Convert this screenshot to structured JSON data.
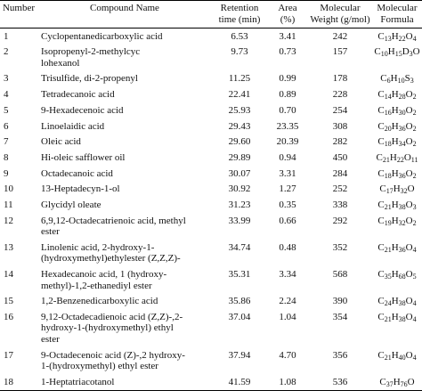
{
  "table": {
    "header": [
      [
        "Number"
      ],
      [
        "Compound Name"
      ],
      [
        "Retention",
        "time (min)"
      ],
      [
        "Area",
        "(%)"
      ],
      [
        "Molecular",
        "Weight (g/mol)"
      ],
      [
        "Molecular",
        "Formula"
      ]
    ],
    "rows": [
      [
        "1",
        [
          "Cyclopentanedicarboxylic acid"
        ],
        "6.53",
        "3.41",
        "242",
        "C13H22O4"
      ],
      [
        "2",
        [
          "Isopropenyl-2-methylcyc",
          "lohexanol"
        ],
        "9.73",
        "0.73",
        "157",
        "C10H15D3O"
      ],
      [
        "3",
        [
          "Trisulfide, di-2-propenyl"
        ],
        "11.25",
        "0.99",
        "178",
        "C6H10S3"
      ],
      [
        "4",
        [
          "Tetradecanoic acid"
        ],
        "22.41",
        "0.89",
        "228",
        "C14H28O2"
      ],
      [
        "5",
        [
          "9-Hexadecenoic acid"
        ],
        "25.93",
        "0.70",
        "254",
        "C16H30O2"
      ],
      [
        "6",
        [
          "Linoelaidic acid"
        ],
        "29.43",
        "23.35",
        "308",
        "C20H36O2"
      ],
      [
        "7",
        [
          "Oleic acid"
        ],
        "29.60",
        "20.39",
        "282",
        "C18H34O2"
      ],
      [
        "8",
        [
          "Hi-oleic safflower oil"
        ],
        "29.89",
        "0.94",
        "450",
        "C21H22O11"
      ],
      [
        "9",
        [
          " Octadecanoic acid"
        ],
        "30.07",
        "3.31",
        "284",
        "C18H36O2"
      ],
      [
        "10",
        [
          "13-Heptadecyn-1-ol"
        ],
        "30.92",
        "1.27",
        "252",
        "C17H32O"
      ],
      [
        "11",
        [
          "Glycidyl oleate"
        ],
        "31.23",
        "0.35",
        "338",
        "C21H38O3"
      ],
      [
        "12",
        [
          "6,9,12-Octadecatrienoic acid, methyl",
          "ester"
        ],
        "33.99",
        "0.66",
        "292",
        "C19H32O2"
      ],
      [
        "13",
        [
          "Linolenic acid, 2-hydroxy-1-",
          "(hydroxymethyl)ethylester (Z,Z,Z)-"
        ],
        "34.74",
        "0.48",
        "352",
        "C21H36O4"
      ],
      [
        "14",
        [
          "Hexadecanoic acid, 1 (hydroxy-",
          "methyl)-1,2-ethanediyl ester"
        ],
        "35.31",
        "3.34",
        "568",
        "C35H68O5"
      ],
      [
        "15",
        [
          "1,2-Benzenedicarboxylic acid"
        ],
        "35.86",
        "2.24",
        "390",
        "C24H38O4"
      ],
      [
        "16",
        [
          "9,12-Octadecadienoic acid (Z,Z)-,2-",
          "hydroxy-1-(hydroxymethyl) ethyl",
          "ester"
        ],
        "37.04",
        "1.04",
        "354",
        "C21H38O4"
      ],
      [
        "17",
        [
          "9-Octadecenoic acid (Z)-,2 hydroxy-",
          "1-(hydroxymethyl) ethyl ester"
        ],
        "37.94",
        "4.70",
        "356",
        "C21H40O4"
      ],
      [
        "18",
        [
          "1-Heptatriacotanol"
        ],
        "41.59",
        "1.08",
        "536",
        "C37H76O"
      ]
    ]
  }
}
